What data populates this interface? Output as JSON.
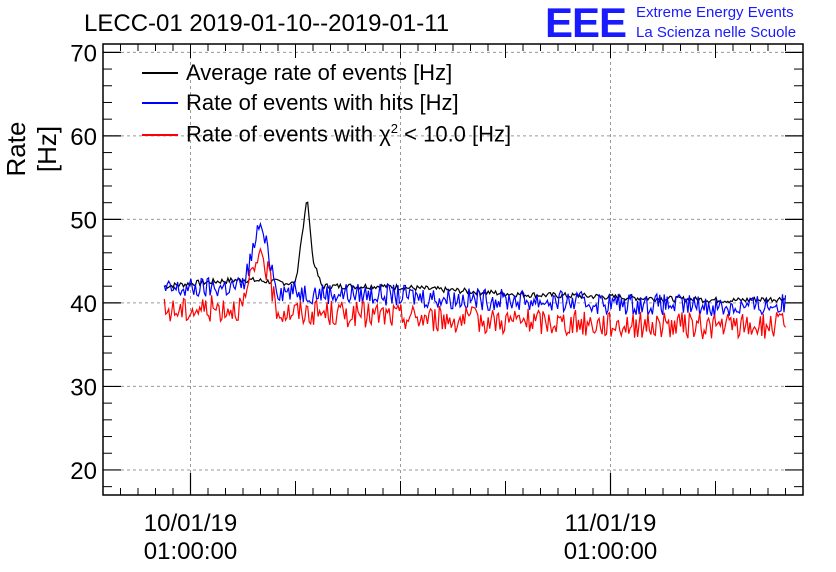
{
  "header": {
    "title": "LECC-01 2019-01-10--2019-01-11",
    "logo_mark": "EEE",
    "logo_line1": "Extreme Energy Events",
    "logo_line2": "La Scienza nelle Scuole"
  },
  "colors": {
    "average": "#000000",
    "hits": "#0000ff",
    "chi2": "#ff0000",
    "logo": "#1a1aff",
    "grid": "#9a9a9a"
  },
  "chart_data": {
    "type": "line",
    "title": "LECC-01 2019-01-10--2019-01-11",
    "xlabel": "",
    "ylabel": "Rate [Hz]",
    "x_is_time": true,
    "xlim": [
      "2019-01-09T20:00:00",
      "2019-01-11T12:00:00"
    ],
    "ylim": [
      17,
      71
    ],
    "y_ticks": [
      20,
      30,
      40,
      50,
      60,
      70
    ],
    "x_ticks": [
      {
        "t": "2019-01-10T01:00:00",
        "label_date": "10/01/19",
        "label_time": "01:00:00"
      },
      {
        "t": "2019-01-11T01:00:00",
        "label_date": "11/01/19",
        "label_time": "01:00:00"
      }
    ],
    "grid": true,
    "legend_position": "top-left",
    "series": [
      {
        "name": "Average rate of events [Hz]",
        "color": "#000000",
        "x": [
          "2019-01-09T23:30:00",
          "2019-01-10T02:00:00",
          "2019-01-10T04:00:00",
          "2019-01-10T06:00:00",
          "2019-01-10T07:00:00",
          "2019-01-10T07:40:00",
          "2019-01-10T08:00:00",
          "2019-01-10T08:30:00",
          "2019-01-10T12:00:00",
          "2019-01-10T16:00:00",
          "2019-01-10T20:00:00",
          "2019-01-11T00:00:00",
          "2019-01-11T04:00:00",
          "2019-01-11T08:00:00",
          "2019-01-11T11:00:00"
        ],
        "y": [
          42,
          42.5,
          42.8,
          42.5,
          42.3,
          52.8,
          45,
          42,
          42,
          41.5,
          41,
          40.8,
          40.5,
          40.3,
          40.5
        ]
      },
      {
        "name": "Rate of events with hits [Hz]",
        "color": "#0000ff",
        "x": [
          "2019-01-09T23:30:00",
          "2019-01-10T02:00:00",
          "2019-01-10T04:00:00",
          "2019-01-10T05:00:00",
          "2019-01-10T06:00:00",
          "2019-01-10T08:00:00",
          "2019-01-10T12:00:00",
          "2019-01-10T16:00:00",
          "2019-01-10T20:00:00",
          "2019-01-11T00:00:00",
          "2019-01-11T04:00:00",
          "2019-01-11T08:00:00",
          "2019-01-11T11:00:00"
        ],
        "y": [
          41.5,
          41.8,
          42,
          49.5,
          41.5,
          41.2,
          41,
          40.5,
          40.3,
          40,
          39.8,
          39.5,
          39.8
        ]
      },
      {
        "name": "Rate of events with χ² < 10.0 [Hz]",
        "name_text": "Rate of events with",
        "name_symbol": "χ",
        "name_exp": "2",
        "name_suffix": " < 10.0 [Hz]",
        "color": "#ff0000",
        "x": [
          "2019-01-09T23:30:00",
          "2019-01-10T02:00:00",
          "2019-01-10T04:00:00",
          "2019-01-10T05:00:00",
          "2019-01-10T06:00:00",
          "2019-01-10T08:00:00",
          "2019-01-10T12:00:00",
          "2019-01-10T16:00:00",
          "2019-01-10T20:00:00",
          "2019-01-11T00:00:00",
          "2019-01-11T04:00:00",
          "2019-01-11T08:00:00",
          "2019-01-11T11:00:00"
        ],
        "y": [
          39,
          39.3,
          39.5,
          46.5,
          39,
          38.8,
          38.5,
          38,
          37.8,
          37.5,
          37.3,
          37.2,
          37.3
        ]
      }
    ]
  }
}
